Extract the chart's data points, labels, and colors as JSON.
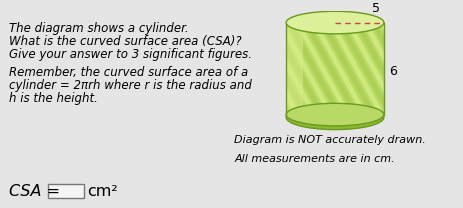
{
  "bg_color": "#e5e5e5",
  "text_lines": [
    "The diagram shows a cylinder.",
    "What is the curved surface area (CSA)?",
    "Give your answer to 3 significant figures."
  ],
  "remember_lines": [
    "Remember, the curved surface area of a",
    "cylinder = 2πrh where r is the radius and",
    "h is the height."
  ],
  "csa_label": "CSA = ",
  "cm2_label": "cm²",
  "diagram_note1": "Diagram is NOT accurately drawn.",
  "diagram_note2": "All measurements are in cm.",
  "radius_label": "5",
  "height_label": "6",
  "cylinder_green_light": "#cce87a",
  "cylinder_green_mid": "#b8d966",
  "cylinder_green_dark": "#8ab830",
  "cylinder_top_light": "#ddf09a",
  "cylinder_stripe_light": "#d8f088",
  "cylinder_stripe_dark": "#a8cc50",
  "font_size_main": 8.5,
  "font_size_formula": 9.5,
  "font_size_note": 8.0,
  "font_size_csa": 11.5
}
